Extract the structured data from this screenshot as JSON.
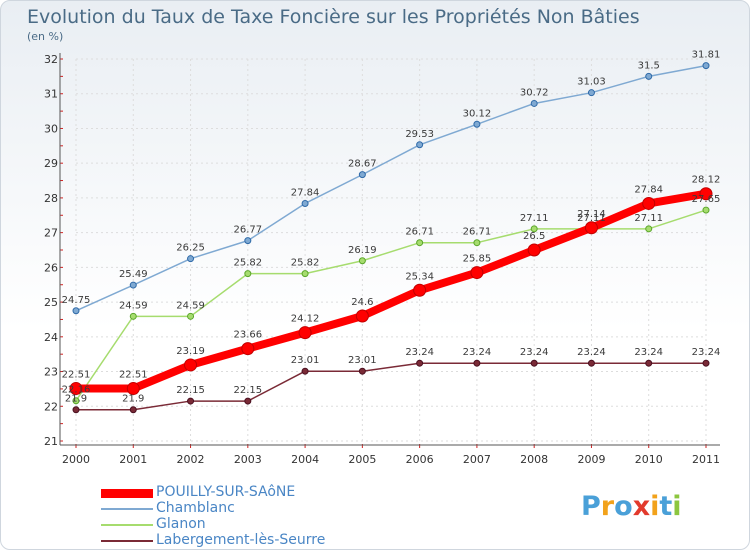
{
  "title": "Evolution du Taux de Taxe Foncière sur les Propriétés Non Bâties",
  "subtitle": "(en %)",
  "logo": {
    "text": "Proxiti",
    "letters": [
      "P",
      "r",
      "o",
      "x",
      "i",
      "t",
      "i"
    ],
    "colors": [
      "#4aa0d8",
      "#f2a21b",
      "#4aa0d8",
      "#e23a2d",
      "#f2a21b",
      "#4aa0d8",
      "#8cc63f"
    ]
  },
  "chart_data": {
    "type": "line",
    "title": "Evolution du Taux de Taxe Foncière sur les Propriétés Non Bâties",
    "ylabel": "(en %)",
    "xlabel": "",
    "ylim": [
      21,
      32
    ],
    "yticks": [
      21,
      22,
      23,
      24,
      25,
      26,
      27,
      28,
      29,
      30,
      31,
      32
    ],
    "grid": true,
    "legend_position": "bottom-left",
    "x": [
      "2000",
      "2001",
      "2002",
      "2003",
      "2004",
      "2005",
      "2006",
      "2007",
      "2008",
      "2009",
      "2010",
      "2011"
    ],
    "series": [
      {
        "name": "POUILLY-SUR-SAôNE",
        "color": "#ff0000",
        "values": [
          22.51,
          22.51,
          23.19,
          23.66,
          24.12,
          24.6,
          25.34,
          25.85,
          26.5,
          27.14,
          27.84,
          28.12
        ],
        "labels": [
          "22.51",
          "22.51",
          "23.19",
          "23.66",
          "24.12",
          "24.6",
          "25.34",
          "25.85",
          "26.5",
          "27.14",
          "27.84",
          "28.12"
        ]
      },
      {
        "name": "Chamblanc",
        "color": "#7fa9d2",
        "values": [
          24.75,
          25.49,
          26.25,
          26.77,
          27.84,
          28.67,
          29.53,
          30.12,
          30.72,
          31.03,
          31.5,
          31.81
        ],
        "labels": [
          "24.75",
          "25.49",
          "26.25",
          "26.77",
          "27.84",
          "28.67",
          "29.53",
          "30.12",
          "30.72",
          "31.03",
          "31.5",
          "31.81"
        ]
      },
      {
        "name": "Glanon",
        "color": "#a6dc6e",
        "values": [
          22.16,
          24.59,
          24.59,
          25.82,
          25.82,
          26.19,
          26.71,
          26.71,
          27.11,
          27.11,
          27.11,
          27.65
        ],
        "labels": [
          "22.16",
          "24.59",
          "24.59",
          "25.82",
          "25.82",
          "26.19",
          "26.71",
          "26.71",
          "27.11",
          "27.11",
          "27.11",
          "27.65"
        ]
      },
      {
        "name": "Labergement-lès-Seurre",
        "color": "#7a2a36",
        "values": [
          21.9,
          21.9,
          22.15,
          22.15,
          23.01,
          23.01,
          23.24,
          23.24,
          23.24,
          23.24,
          23.24,
          23.24
        ],
        "labels": [
          "21.9",
          "21.9",
          "22.15",
          "22.15",
          "23.01",
          "23.01",
          "23.24",
          "23.24",
          "23.24",
          "23.24",
          "23.24",
          "23.24"
        ]
      }
    ]
  }
}
